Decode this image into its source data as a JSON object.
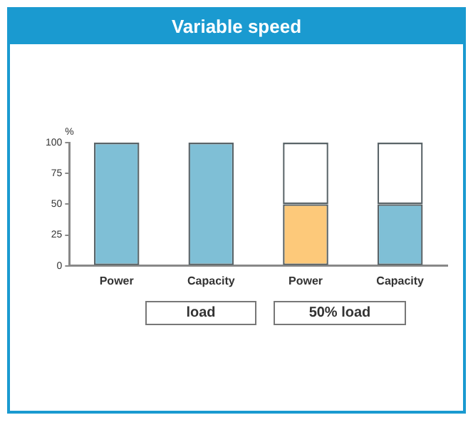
{
  "chart_data": {
    "type": "bar",
    "title": "Variable speed",
    "ylabel": "%",
    "categories": [
      "Power",
      "Capacity",
      "Power",
      "Capacity"
    ],
    "stacked": true,
    "grid": false,
    "legend": false,
    "ylim": [
      0,
      100
    ],
    "yticks": [
      0,
      25,
      50,
      75,
      100
    ],
    "series": [
      {
        "colors": [
          "#7fbfd6",
          "#7fbfd6",
          "#fdc97a",
          "#7fbfd6"
        ],
        "values": [
          100,
          100,
          50,
          50
        ]
      },
      {
        "color": "#ffffff",
        "values": [
          null,
          null,
          50,
          50
        ]
      }
    ],
    "annotations": [
      "load",
      "50% load"
    ]
  }
}
